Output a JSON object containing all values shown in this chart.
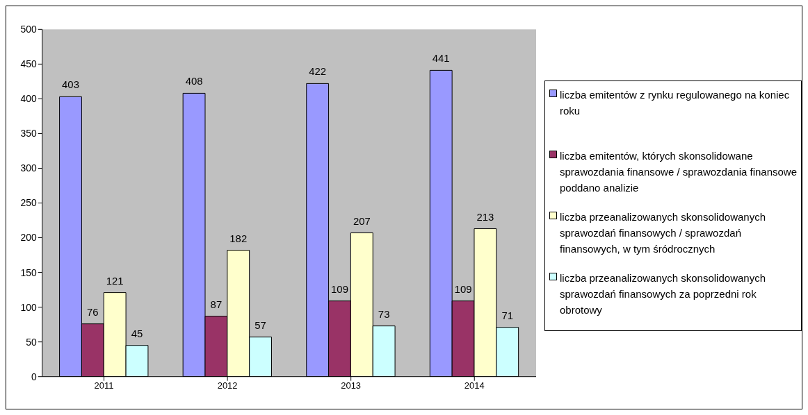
{
  "chart_data": {
    "type": "bar",
    "categories": [
      "2011",
      "2012",
      "2013",
      "2014"
    ],
    "series": [
      {
        "name": "liczba emitentów z rynku regulowanego na koniec roku",
        "color": "#9999ff",
        "values": [
          403,
          408,
          422,
          441
        ]
      },
      {
        "name": "liczba emitentów, których skonsolidowane sprawozdania finansowe / sprawozdania finansowe poddano analizie",
        "color": "#993366",
        "values": [
          76,
          87,
          109,
          109
        ]
      },
      {
        "name": "liczba przeanalizowanych skonsolidowanych sprawozdań finansowych / sprawozdań finansowych, w tym śródrocznych",
        "color": "#ffffcc",
        "values": [
          121,
          182,
          207,
          213
        ]
      },
      {
        "name": "liczba przeanalizowanych skonsolidowanych sprawozdań finansowych za poprzedni rok obrotowy",
        "color": "#ccffff",
        "values": [
          45,
          57,
          73,
          71
        ]
      }
    ],
    "ylim": [
      0,
      500
    ],
    "yticks": [
      0,
      50,
      100,
      150,
      200,
      250,
      300,
      350,
      400,
      450,
      500
    ],
    "data_labels": true,
    "legend": "right"
  }
}
